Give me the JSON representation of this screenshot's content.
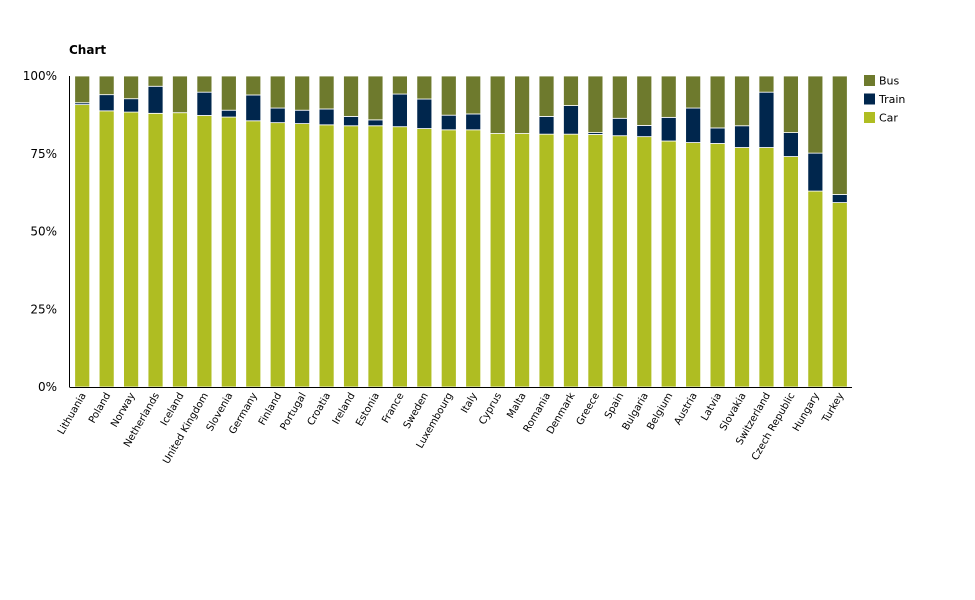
{
  "chart_data": {
    "type": "bar",
    "stacked": true,
    "title": "Chart",
    "xlabel": "",
    "ylabel": "",
    "ylim": [
      0,
      100
    ],
    "yticks": [
      "0%",
      "25%",
      "50%",
      "75%",
      "100%"
    ],
    "grid": false,
    "legend_position": "right",
    "categories": [
      "Lithuania",
      "Poland",
      "Norway",
      "Netherlands",
      "Iceland",
      "United Kingdom",
      "Slovenia",
      "Germany",
      "Finland",
      "Portugal",
      "Croatia",
      "Ireland",
      "Estonia",
      "France",
      "Sweden",
      "Luxembourg",
      "Italy",
      "Cyprus",
      "Malta",
      "Romania",
      "Denmark",
      "Greece",
      "Spain",
      "Bulgaria",
      "Belgium",
      "Austria",
      "Latvia",
      "Slovakia",
      "Switzerland",
      "Czech Republic",
      "Hungary",
      "Turkey"
    ],
    "series": [
      {
        "name": "Car",
        "color": "#afbd22",
        "values": [
          90.8,
          88.8,
          88.4,
          88.0,
          88.2,
          87.3,
          86.8,
          85.6,
          85.0,
          84.7,
          84.3,
          84.0,
          84.0,
          83.7,
          83.1,
          82.7,
          82.7,
          81.5,
          81.5,
          81.3,
          81.3,
          81.2,
          80.8,
          80.5,
          79.1,
          78.6,
          78.3,
          77.0,
          77.0,
          74.1,
          63.0,
          59.3
        ]
      },
      {
        "name": "Train",
        "color": "#00264d",
        "values": [
          0.6,
          5.2,
          4.3,
          8.7,
          0.0,
          7.5,
          2.2,
          8.3,
          4.7,
          4.3,
          5.1,
          3.0,
          1.9,
          10.5,
          9.5,
          4.7,
          5.1,
          0.0,
          0.0,
          5.7,
          9.2,
          0.6,
          5.6,
          3.6,
          7.6,
          11.1,
          5.0,
          7.0,
          17.8,
          7.7,
          12.2,
          2.6
        ]
      },
      {
        "name": "Bus",
        "color": "#6e7a2d",
        "values": [
          8.6,
          6.0,
          7.3,
          3.3,
          11.8,
          5.2,
          11.0,
          6.1,
          10.3,
          11.0,
          10.6,
          13.0,
          14.1,
          5.8,
          7.4,
          12.6,
          12.2,
          18.5,
          18.5,
          13.0,
          9.5,
          18.2,
          13.6,
          15.9,
          13.3,
          10.3,
          16.7,
          16.0,
          5.2,
          18.2,
          24.8,
          38.1
        ]
      }
    ]
  }
}
